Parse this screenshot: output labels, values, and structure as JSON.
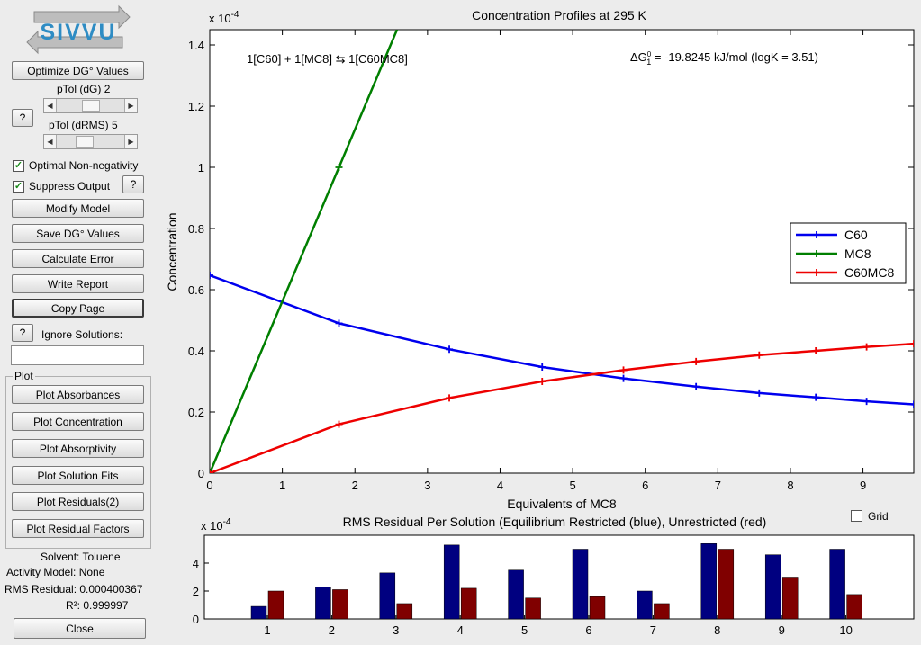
{
  "app": {
    "logo_text": "SIVVU"
  },
  "controls": {
    "optimize_label": "Optimize DG° Values",
    "ptol_dg_label": "pTol (dG)",
    "ptol_dg_value": "2",
    "ptol_drms_label": "pTol (dRMS)",
    "ptol_drms_value": "5",
    "help_label": "?",
    "optimal_nonneg_label": "Optimal Non-negativity",
    "suppress_output_label": "Suppress Output",
    "modify_model_label": "Modify Model",
    "save_dg_label": "Save DG° Values",
    "calculate_error_label": "Calculate Error",
    "write_report_label": "Write Report",
    "copy_page_label": "Copy Page",
    "ignore_solutions_label": "Ignore Solutions:",
    "ignore_solutions_value": ""
  },
  "plot_panel": {
    "title": "Plot",
    "buttons": [
      "Plot Absorbances",
      "Plot Concentration",
      "Plot Absorptivity",
      "Plot Solution Fits",
      "Plot Residuals(2)",
      "Plot Residual Factors"
    ]
  },
  "info": {
    "solvent": "Solvent: Toluene",
    "activity_model": "Activity Model: None",
    "rms_residual": "RMS Residual: 0.000400367",
    "r2": "R²: 0.999997"
  },
  "close_label": "Close",
  "grid_checkbox_label": "Grid",
  "colors": {
    "blue": "#0000ee",
    "green": "#007f00",
    "red": "#ee0000",
    "bar_blue": "#000080",
    "bar_red": "#800000"
  },
  "chart_data": [
    {
      "type": "line",
      "title": "Concentration Profiles at 295 K",
      "xlabel": "Equivalents of MC8",
      "ylabel": "Concentration",
      "exponent_label": "x 10",
      "exponent_power": "-4",
      "xlim": [
        0,
        9.7
      ],
      "ylim": [
        0,
        1.45
      ],
      "xticks": [
        0,
        1,
        2,
        3,
        4,
        5,
        6,
        7,
        8,
        9
      ],
      "yticks": [
        0,
        0.2,
        0.4,
        0.6,
        0.8,
        1,
        1.2,
        1.4
      ],
      "ytick_labels": [
        "0",
        "0.2",
        "0.4",
        "0.6",
        "0.8",
        "1",
        "1.2",
        "1.4"
      ],
      "annotation_left": "1[C60] + 1[MC8] ⇆ 1[C60MC8]",
      "annotation_right_prefix": "ΔG",
      "annotation_right_sub": "1",
      "annotation_right_sup": "0",
      "annotation_right_text": " = -19.8245 kJ/mol (logK = 3.51)",
      "legend_position": "right",
      "series": [
        {
          "name": "C60",
          "color": "#0000ee",
          "x": [
            0,
            1.78,
            3.3,
            4.58,
            5.7,
            6.7,
            7.57,
            8.35,
            9.05,
            9.7
          ],
          "y": [
            0.647,
            0.49,
            0.405,
            0.347,
            0.31,
            0.283,
            0.262,
            0.248,
            0.235,
            0.225
          ]
        },
        {
          "name": "MC8",
          "color": "#007f00",
          "x": [
            0,
            1.78,
            3.3
          ],
          "y": [
            0,
            1.0,
            1.855
          ]
        },
        {
          "name": "C60MC8",
          "color": "#ee0000",
          "x": [
            0,
            1.78,
            3.3,
            4.58,
            5.7,
            6.7,
            7.57,
            8.35,
            9.05,
            9.7
          ],
          "y": [
            0,
            0.16,
            0.246,
            0.3,
            0.337,
            0.365,
            0.386,
            0.4,
            0.413,
            0.423
          ]
        }
      ]
    },
    {
      "type": "bar",
      "title": "RMS Residual Per Solution (Equilibrium Restricted (blue), Unrestricted (red)",
      "exponent_label": "x 10",
      "exponent_power": "-4",
      "categories": [
        "1",
        "2",
        "3",
        "4",
        "5",
        "6",
        "7",
        "8",
        "9",
        "10"
      ],
      "ylim": [
        0,
        6
      ],
      "yticks": [
        0,
        2,
        4
      ],
      "series": [
        {
          "name": "Equilibrium Restricted",
          "color": "#000080",
          "values": [
            0.9,
            2.3,
            3.3,
            5.3,
            3.5,
            5.0,
            2.0,
            5.4,
            4.6,
            5.0
          ]
        },
        {
          "name": "Unrestricted",
          "color": "#800000",
          "values": [
            2.0,
            2.1,
            1.1,
            2.2,
            1.5,
            1.6,
            1.1,
            5.0,
            3.0,
            1.75
          ]
        }
      ]
    }
  ]
}
